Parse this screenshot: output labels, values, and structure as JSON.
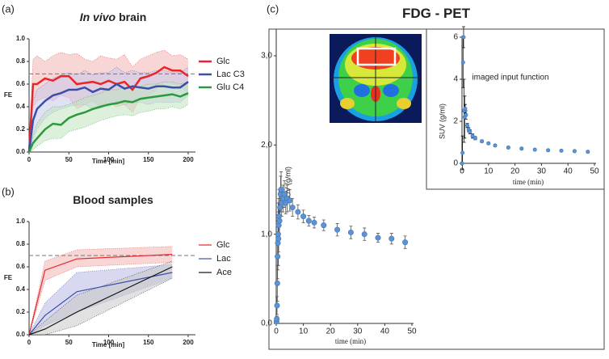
{
  "chart_data": [
    {
      "type": "line",
      "panel_label": "(a)",
      "title": [
        "In vivo",
        "brain"
      ],
      "xlabel": "Time [min]",
      "ylabel": "FE",
      "xlim": [
        0,
        200
      ],
      "ylim": [
        0,
        1
      ],
      "xticks": [
        0,
        50,
        100,
        150,
        200
      ],
      "yticks": [
        {
          "value": 0,
          "label": "0.0"
        },
        0.2,
        0.4,
        0.6,
        0.8,
        {
          "value": 1,
          "label": "1.0"
        }
      ],
      "reference_line": 0.69,
      "x": [
        0,
        5,
        10,
        20,
        30,
        40,
        50,
        60,
        70,
        80,
        90,
        100,
        110,
        120,
        130,
        140,
        150,
        160,
        170,
        180,
        190,
        200
      ],
      "series": [
        {
          "name": "Glc",
          "color": "#e8262a",
          "band_color": "#f4b4b4",
          "values": [
            0,
            0.6,
            0.6,
            0.65,
            0.63,
            0.67,
            0.67,
            0.6,
            0.61,
            0.62,
            0.6,
            0.63,
            0.6,
            0.62,
            0.55,
            0.65,
            0.67,
            0.7,
            0.75,
            0.72,
            0.72,
            0.67
          ],
          "upper": [
            0,
            0.82,
            0.85,
            0.8,
            0.85,
            0.88,
            0.86,
            0.87,
            0.82,
            0.8,
            0.85,
            0.83,
            0.82,
            0.86,
            0.75,
            0.82,
            0.85,
            0.88,
            0.9,
            0.85,
            0.86,
            0.82
          ],
          "lower": [
            0,
            0.4,
            0.45,
            0.48,
            0.45,
            0.5,
            0.48,
            0.38,
            0.42,
            0.45,
            0.4,
            0.45,
            0.4,
            0.42,
            0.35,
            0.48,
            0.5,
            0.55,
            0.62,
            0.6,
            0.58,
            0.52
          ]
        },
        {
          "name": "Lac C3",
          "color": "#3a4fa8",
          "band_color": "#c8c8ec",
          "values": [
            0,
            0.28,
            0.38,
            0.45,
            0.5,
            0.52,
            0.55,
            0.55,
            0.57,
            0.53,
            0.56,
            0.55,
            0.6,
            0.56,
            0.58,
            0.57,
            0.56,
            0.58,
            0.58,
            0.57,
            0.57,
            0.62
          ],
          "upper": [
            0,
            0.45,
            0.55,
            0.6,
            0.65,
            0.68,
            0.7,
            0.68,
            0.72,
            0.68,
            0.7,
            0.7,
            0.75,
            0.7,
            0.72,
            0.7,
            0.7,
            0.72,
            0.72,
            0.7,
            0.7,
            0.75
          ],
          "lower": [
            0,
            0.12,
            0.2,
            0.3,
            0.35,
            0.38,
            0.4,
            0.42,
            0.42,
            0.38,
            0.42,
            0.4,
            0.45,
            0.42,
            0.44,
            0.44,
            0.42,
            0.44,
            0.44,
            0.44,
            0.44,
            0.5
          ]
        },
        {
          "name": "Glu C4",
          "color": "#2a9a3a",
          "band_color": "#bfe4bf",
          "values": [
            0,
            0.08,
            0.12,
            0.2,
            0.25,
            0.24,
            0.3,
            0.33,
            0.35,
            0.38,
            0.4,
            0.42,
            0.43,
            0.45,
            0.44,
            0.47,
            0.48,
            0.49,
            0.5,
            0.51,
            0.49,
            0.52
          ],
          "upper": [
            0,
            0.15,
            0.25,
            0.35,
            0.4,
            0.4,
            0.42,
            0.45,
            0.48,
            0.5,
            0.52,
            0.55,
            0.55,
            0.57,
            0.56,
            0.58,
            0.6,
            0.6,
            0.62,
            0.62,
            0.6,
            0.62
          ],
          "lower": [
            0,
            0.02,
            0.05,
            0.1,
            0.12,
            0.12,
            0.18,
            0.2,
            0.22,
            0.25,
            0.28,
            0.3,
            0.32,
            0.33,
            0.32,
            0.35,
            0.36,
            0.38,
            0.38,
            0.4,
            0.38,
            0.42
          ]
        }
      ]
    },
    {
      "type": "line",
      "panel_label": "(b)",
      "title": [
        "Blood samples"
      ],
      "xlabel": "Time [min]",
      "ylabel": "FE",
      "xlim": [
        0,
        200
      ],
      "ylim": [
        0,
        1
      ],
      "xticks": [
        0,
        50,
        100,
        150,
        200
      ],
      "yticks": [
        {
          "value": 0,
          "label": "0.0"
        },
        0.2,
        0.4,
        0.6,
        0.8,
        {
          "value": 1,
          "label": "1.0"
        }
      ],
      "reference_line": 0.7,
      "x": [
        0,
        20,
        60,
        180
      ],
      "series": [
        {
          "name": "Glc",
          "color": "#e8262a",
          "band_color": "#f4b4b4",
          "values": [
            0,
            0.57,
            0.67,
            0.71
          ],
          "upper": [
            0,
            0.65,
            0.75,
            0.78
          ],
          "lower": [
            0,
            0.48,
            0.6,
            0.64
          ]
        },
        {
          "name": "Lac",
          "color": "#3a4fa8",
          "band_color": "#b8b8e4",
          "values": [
            0,
            0.17,
            0.38,
            0.55
          ],
          "upper": [
            0,
            0.28,
            0.55,
            0.62
          ],
          "lower": [
            0,
            0.08,
            0.2,
            0.5
          ]
        },
        {
          "name": "Ace",
          "color": "#111111",
          "band_color": "#c8c8c8",
          "values": [
            0,
            0.05,
            0.2,
            0.6
          ],
          "upper": [
            0,
            0.12,
            0.35,
            0.65
          ],
          "lower": [
            0,
            0,
            0.08,
            0.5
          ]
        }
      ]
    },
    {
      "type": "scatter",
      "panel_label": "(c)",
      "title": [
        "FDG - PET"
      ],
      "xlabel": "time (min)",
      "ylabel": "SUV  (g/ml)",
      "xlim": [
        0,
        50
      ],
      "ylim": [
        0,
        3
      ],
      "xticks": [
        0,
        10,
        20,
        30,
        40,
        50
      ],
      "yticks": [
        {
          "value": 0,
          "label": "0,0"
        },
        {
          "value": 1,
          "label": "1,0"
        },
        {
          "value": 2,
          "label": "2,0"
        },
        {
          "value": 3,
          "label": "3,0"
        }
      ],
      "color": "#5b93d3",
      "error_color": "#555555",
      "x": [
        0.1,
        0.2,
        0.3,
        0.4,
        0.5,
        0.6,
        0.7,
        0.8,
        0.9,
        1.0,
        1.2,
        1.4,
        1.6,
        1.8,
        2.0,
        2.5,
        3,
        3.5,
        4,
        5,
        6,
        8,
        10,
        12,
        14,
        17.5,
        22.5,
        27.5,
        32.5,
        37.5,
        42.5,
        47.5
      ],
      "values": [
        0.02,
        0.05,
        0.2,
        0.45,
        0.75,
        0.9,
        1.0,
        0.95,
        1.1,
        1.2,
        1.15,
        1.3,
        1.45,
        1.5,
        1.35,
        1.4,
        1.45,
        1.35,
        1.4,
        1.38,
        1.3,
        1.25,
        1.2,
        1.15,
        1.13,
        1.1,
        1.05,
        1.02,
        1.0,
        0.96,
        0.95,
        0.91
      ],
      "errors": [
        0.02,
        0.03,
        0.1,
        0.2,
        0.25,
        0.3,
        0.35,
        0.3,
        0.3,
        0.3,
        0.2,
        0.2,
        0.2,
        0.2,
        0.15,
        0.15,
        0.15,
        0.12,
        0.15,
        0.12,
        0.1,
        0.08,
        0.07,
        0.06,
        0.06,
        0.06,
        0.07,
        0.07,
        0.07,
        0.05,
        0.06,
        0.07
      ]
    },
    {
      "type": "scatter",
      "annotation": "imaged input function",
      "xlabel": "time (min)",
      "ylabel": "SUV (g/ml)",
      "xlim": [
        0,
        50
      ],
      "ylim": [
        0,
        6
      ],
      "xticks": [
        0,
        10,
        20,
        30,
        40,
        50
      ],
      "yticks": [
        0,
        2,
        4,
        6
      ],
      "color": "#5b93d3",
      "error_color": "#111111",
      "x": [
        0,
        0.2,
        0.4,
        0.6,
        0.8,
        1.0,
        1.2,
        1.5,
        2,
        2.5,
        3,
        4,
        5,
        7.5,
        10,
        12.5,
        17.5,
        22.5,
        27.5,
        32.5,
        37.5,
        42.5,
        47.5
      ],
      "values": [
        0,
        0.5,
        4.8,
        6.0,
        2.5,
        2.2,
        2.6,
        2.3,
        1.8,
        1.6,
        1.5,
        1.3,
        1.2,
        1.05,
        0.95,
        0.85,
        0.75,
        0.7,
        0.65,
        0.62,
        0.6,
        0.58,
        0.55
      ],
      "errors": [
        0,
        0.8,
        1.2,
        0.5,
        1.5,
        1.0,
        0.2,
        0.2,
        0.1,
        0.1,
        0.1,
        0.1,
        0.08,
        0.06,
        0.05,
        0.05,
        0.05,
        0.05,
        0.04,
        0.04,
        0.04,
        0.04,
        0.04
      ]
    }
  ]
}
